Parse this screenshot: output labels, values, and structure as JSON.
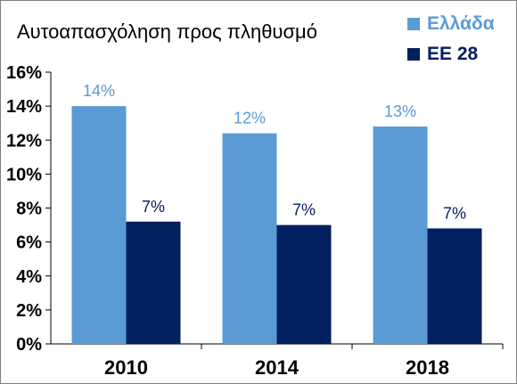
{
  "chart_data": {
    "type": "bar",
    "title": "Αυτοαπασχόληση προς πληθυσμό",
    "categories": [
      "2010",
      "2014",
      "2018"
    ],
    "series": [
      {
        "name": "Ελλάδα",
        "values": [
          14,
          12.4,
          12.8
        ],
        "labels": [
          "14%",
          "12%",
          "13%"
        ],
        "color": "#5b9bd5"
      },
      {
        "name": "ΕΕ 28",
        "values": [
          7.2,
          7.0,
          6.8
        ],
        "labels": [
          "7%",
          "7%",
          "7%"
        ],
        "color": "#002060"
      }
    ],
    "ylim": [
      0,
      16
    ],
    "yticks": [
      "0%",
      "2%",
      "4%",
      "6%",
      "8%",
      "10%",
      "12%",
      "14%",
      "16%"
    ],
    "xlabel": "",
    "ylabel": "",
    "grid": false,
    "legend_position": "top-right"
  }
}
